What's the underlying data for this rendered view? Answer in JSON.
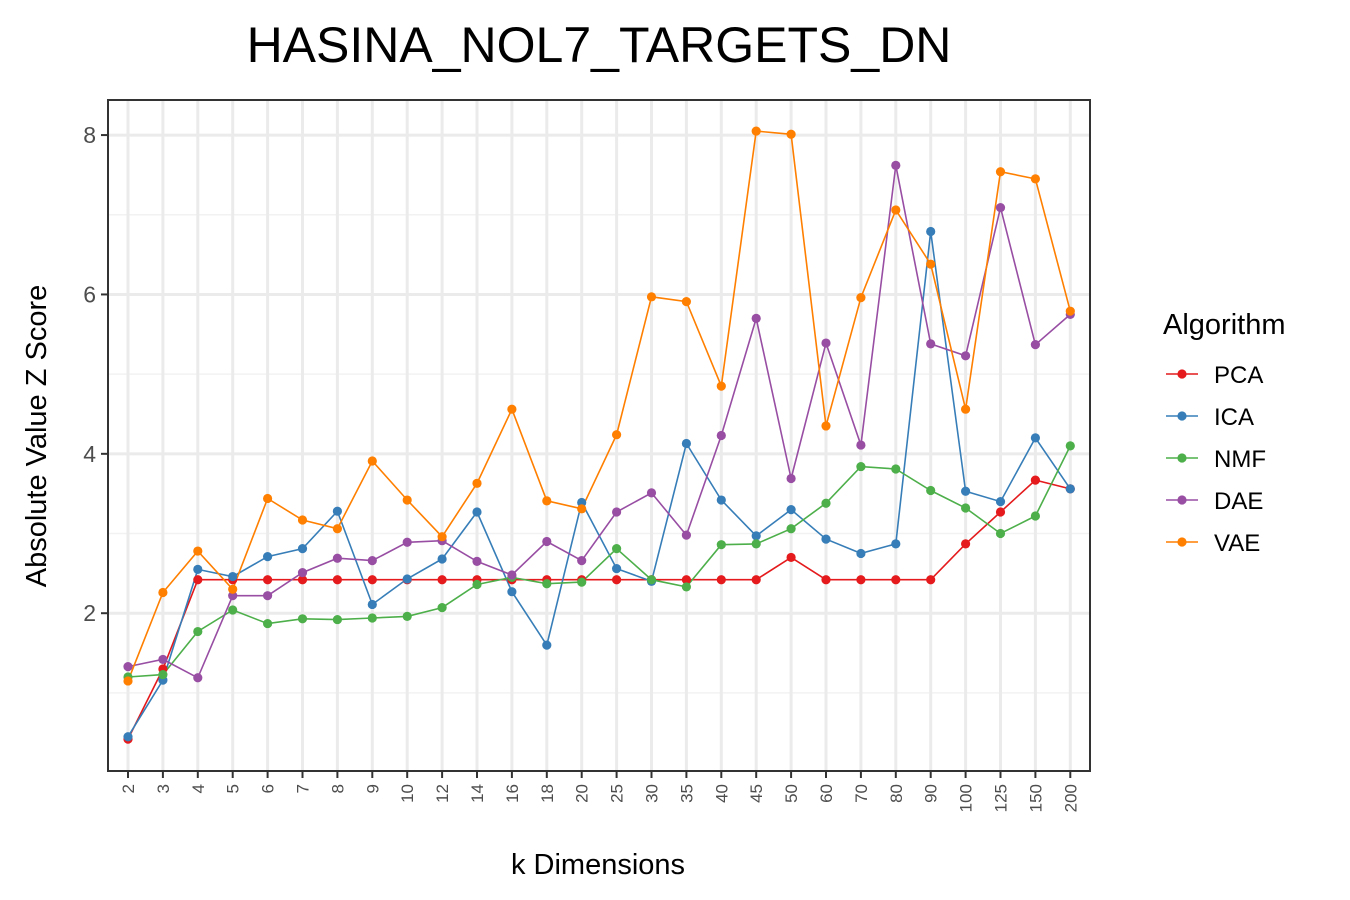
{
  "chart_data": {
    "type": "line",
    "title": "HASINA_NOL7_TARGETS_DN",
    "xlabel": "k Dimensions",
    "ylabel": "Absolute Value Z Score",
    "categories": [
      "2",
      "3",
      "4",
      "5",
      "6",
      "7",
      "8",
      "9",
      "10",
      "12",
      "14",
      "16",
      "18",
      "20",
      "25",
      "30",
      "35",
      "40",
      "45",
      "50",
      "60",
      "70",
      "80",
      "90",
      "100",
      "125",
      "150",
      "200"
    ],
    "yticks": [
      "2",
      "4",
      "6",
      "8"
    ],
    "ylim": [
      0.02,
      8.44
    ],
    "grid": true,
    "legend": {
      "title": "Algorithm",
      "placement": "right"
    },
    "series": [
      {
        "name": "PCA",
        "color": "#E41A1C",
        "values": [
          0.42,
          1.3,
          2.42,
          2.42,
          2.42,
          2.42,
          2.42,
          2.42,
          2.42,
          2.42,
          2.42,
          2.42,
          2.42,
          2.42,
          2.42,
          2.42,
          2.42,
          2.42,
          2.42,
          2.7,
          2.42,
          2.42,
          2.42,
          2.42,
          2.87,
          3.27,
          3.67,
          3.56
        ]
      },
      {
        "name": "ICA",
        "color": "#377EB8",
        "values": [
          0.45,
          1.16,
          2.55,
          2.46,
          2.71,
          2.81,
          3.28,
          2.11,
          2.43,
          2.68,
          3.27,
          2.27,
          1.6,
          3.39,
          2.56,
          2.4,
          4.13,
          3.42,
          2.97,
          3.3,
          2.93,
          2.75,
          2.87,
          6.79,
          3.53,
          3.4,
          4.2,
          3.56
        ]
      },
      {
        "name": "NMF",
        "color": "#4DAF4A",
        "values": [
          1.2,
          1.23,
          1.77,
          2.04,
          1.87,
          1.93,
          1.92,
          1.94,
          1.96,
          2.07,
          2.36,
          2.45,
          2.37,
          2.39,
          2.81,
          2.42,
          2.33,
          2.86,
          2.87,
          3.06,
          3.38,
          3.84,
          3.81,
          3.54,
          3.32,
          3.0,
          3.22,
          4.1
        ]
      },
      {
        "name": "DAE",
        "color": "#984EA3",
        "values": [
          1.33,
          1.42,
          1.19,
          2.22,
          2.22,
          2.51,
          2.69,
          2.66,
          2.89,
          2.91,
          2.65,
          2.48,
          2.9,
          2.66,
          3.27,
          3.51,
          2.98,
          4.23,
          5.7,
          3.69,
          5.39,
          4.11,
          7.62,
          5.38,
          5.23,
          7.09,
          5.37,
          5.75
        ]
      },
      {
        "name": "VAE",
        "color": "#FF7F00",
        "values": [
          1.15,
          2.26,
          2.78,
          2.3,
          3.44,
          3.17,
          3.06,
          3.91,
          3.42,
          2.96,
          3.63,
          4.56,
          3.41,
          3.31,
          4.24,
          5.97,
          5.91,
          4.85,
          8.05,
          8.01,
          4.35,
          5.96,
          7.06,
          6.38,
          4.56,
          7.54,
          7.45,
          5.79
        ]
      }
    ]
  }
}
